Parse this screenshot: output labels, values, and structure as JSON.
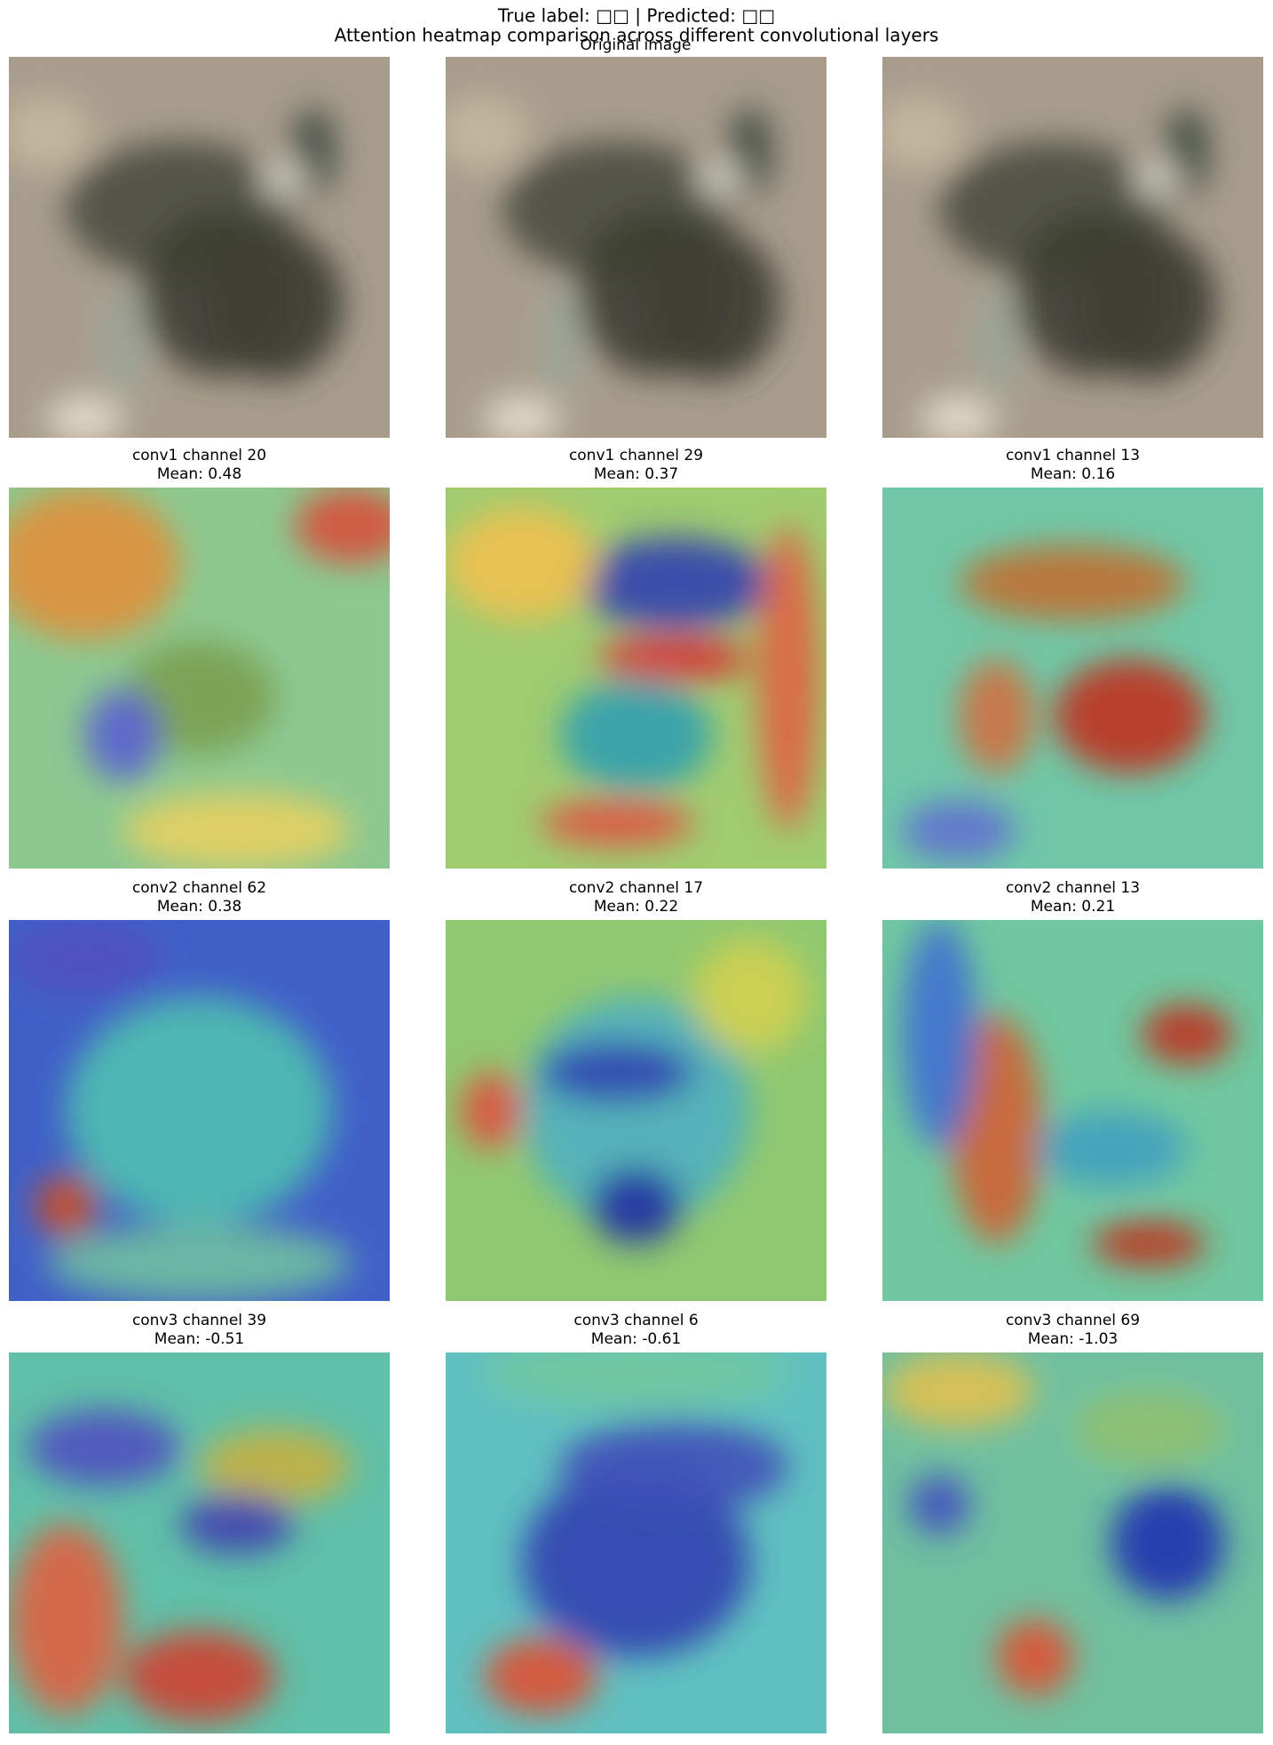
{
  "header": {
    "title": "True label: □□ | Predicted: □□",
    "subtitle": "Attention heatmap comparison across different convolutional layers"
  },
  "original": {
    "title": "Original image"
  },
  "heatmaps": [
    [
      {
        "label": "conv1 channel 20",
        "mean": "Mean: 0.48"
      },
      {
        "label": "conv1 channel 29",
        "mean": "Mean: 0.37"
      },
      {
        "label": "conv1 channel 13",
        "mean": "Mean: 0.16"
      }
    ],
    [
      {
        "label": "conv2 channel 62",
        "mean": "Mean: 0.38"
      },
      {
        "label": "conv2 channel 17",
        "mean": "Mean: 0.22"
      },
      {
        "label": "conv2 channel 13",
        "mean": "Mean: 0.21"
      }
    ],
    [
      {
        "label": "conv3 channel 39",
        "mean": "Mean: -0.51"
      },
      {
        "label": "conv3 channel 6",
        "mean": "Mean: -0.61"
      },
      {
        "label": "conv3 channel 69",
        "mean": "Mean: -1.03"
      }
    ]
  ]
}
